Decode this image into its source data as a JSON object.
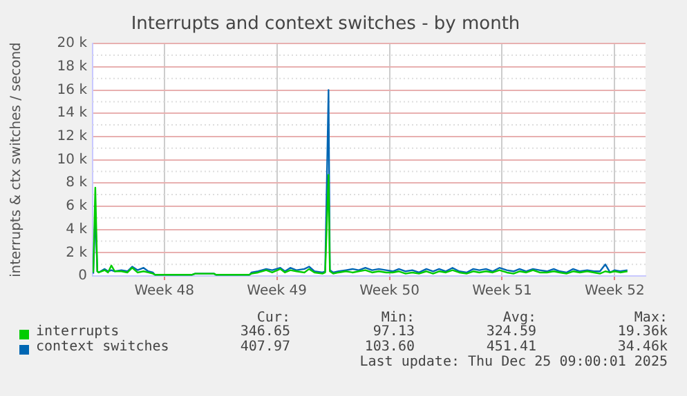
{
  "chart_data": {
    "type": "line",
    "title": "Interrupts and context switches - by month",
    "ylabel": "interrupts & ctx switches / second",
    "x": [
      "2025-11-21T01:00",
      "2025-11-21T04:00",
      "2025-11-21T07:00",
      "2025-11-21T09:00",
      "2025-11-21T18:00",
      "2025-11-21T23:00",
      "2025-11-22T04:00",
      "2025-11-22T09:00",
      "2025-11-22T19:00",
      "2025-11-23T04:00",
      "2025-11-23T11:00",
      "2025-11-23T19:00",
      "2025-11-24T04:00",
      "2025-11-24T11:00",
      "2025-11-24T18:00",
      "2025-11-24T21:00",
      "2025-11-25T21:00",
      "2025-11-27T04:00",
      "2025-11-27T09:00",
      "2025-11-28T13:00",
      "2025-11-28T16:00",
      "2025-11-30T18:00",
      "2025-11-30T21:00",
      "2025-12-01T07:00",
      "2025-12-01T19:00",
      "2025-12-02T04:00",
      "2025-12-02T16:00",
      "2025-12-02T23:00",
      "2025-12-03T07:00",
      "2025-12-03T16:00",
      "2025-12-04T04:00",
      "2025-12-04T11:00",
      "2025-12-04T19:00",
      "2025-12-05T07:00",
      "2025-12-05T11:00",
      "2025-12-05T16:00",
      "2025-12-05T18:00",
      "2025-12-05T23:00",
      "2025-12-06T07:00",
      "2025-12-06T18:00",
      "2025-12-07T04:00",
      "2025-12-07T13:00",
      "2025-12-07T23:00",
      "2025-12-08T09:00",
      "2025-12-08T19:00",
      "2025-12-09T06:00",
      "2025-12-09T16:00",
      "2025-12-10T01:00",
      "2025-12-10T11:00",
      "2025-12-10T21:00",
      "2025-12-11T07:00",
      "2025-12-11T18:00",
      "2025-12-12T04:00",
      "2025-12-12T13:00",
      "2025-12-12T23:00",
      "2025-12-13T09:00",
      "2025-12-13T19:00",
      "2025-12-14T06:00",
      "2025-12-14T16:00",
      "2025-12-15T01:00",
      "2025-12-15T11:00",
      "2025-12-15T21:00",
      "2025-12-16T07:00",
      "2025-12-16T18:00",
      "2025-12-17T04:00",
      "2025-12-17T13:00",
      "2025-12-17T23:00",
      "2025-12-18T09:00",
      "2025-12-18T19:00",
      "2025-12-19T06:00",
      "2025-12-19T16:00",
      "2025-12-20T01:00",
      "2025-12-20T11:00",
      "2025-12-20T21:00",
      "2025-12-21T07:00",
      "2025-12-21T18:00",
      "2025-12-22T04:00",
      "2025-12-22T13:00",
      "2025-12-22T21:00",
      "2025-12-23T04:00",
      "2025-12-23T11:00",
      "2025-12-23T19:00",
      "2025-12-24T06:00"
    ],
    "series": [
      {
        "name": "interrupts",
        "color": "#00cc00",
        "values": [
          300,
          7600,
          400,
          300,
          500,
          300,
          900,
          400,
          400,
          300,
          700,
          300,
          400,
          300,
          200,
          100,
          100,
          100,
          200,
          200,
          100,
          100,
          200,
          300,
          500,
          300,
          600,
          300,
          500,
          400,
          300,
          600,
          300,
          200,
          300,
          8700,
          400,
          200,
          300,
          400,
          300,
          400,
          500,
          300,
          400,
          300,
          300,
          400,
          200,
          300,
          200,
          400,
          200,
          400,
          300,
          500,
          300,
          200,
          400,
          300,
          400,
          300,
          500,
          300,
          200,
          400,
          300,
          500,
          300,
          300,
          400,
          300,
          200,
          400,
          300,
          400,
          300,
          200,
          400,
          300,
          400,
          300,
          400
        ]
      },
      {
        "name": "context switches",
        "color": "#0066b3",
        "values": [
          200,
          5500,
          400,
          300,
          600,
          400,
          500,
          400,
          500,
          400,
          800,
          500,
          700,
          400,
          300,
          100,
          100,
          100,
          200,
          200,
          100,
          100,
          300,
          400,
          600,
          500,
          700,
          400,
          700,
          500,
          600,
          800,
          400,
          300,
          400,
          16000,
          500,
          300,
          400,
          500,
          600,
          500,
          700,
          500,
          600,
          500,
          400,
          600,
          400,
          500,
          300,
          600,
          400,
          600,
          400,
          700,
          400,
          300,
          600,
          500,
          600,
          400,
          700,
          500,
          400,
          600,
          400,
          600,
          500,
          400,
          600,
          400,
          300,
          600,
          400,
          500,
          400,
          400,
          1000,
          300,
          500,
          400,
          500
        ]
      }
    ],
    "xlim": [
      "2025-11-21T00:00",
      "2025-12-25T09:00"
    ],
    "xticks": [
      {
        "value": "2025-11-25T11:00",
        "label": "Week 48"
      },
      {
        "value": "2025-12-02T11:00",
        "label": "Week 49"
      },
      {
        "value": "2025-12-09T11:00",
        "label": "Week 50"
      },
      {
        "value": "2025-12-16T11:00",
        "label": "Week 51"
      },
      {
        "value": "2025-12-23T11:00",
        "label": "Week 52"
      }
    ],
    "ylim": [
      0,
      20000
    ],
    "yticks": [
      {
        "value": 0,
        "label": "0"
      },
      {
        "value": 2000,
        "label": "2 k"
      },
      {
        "value": 4000,
        "label": "4 k"
      },
      {
        "value": 6000,
        "label": "6 k"
      },
      {
        "value": 8000,
        "label": "8 k"
      },
      {
        "value": 10000,
        "label": "10 k"
      },
      {
        "value": 12000,
        "label": "12 k"
      },
      {
        "value": 14000,
        "label": "14 k"
      },
      {
        "value": 16000,
        "label": "16 k"
      },
      {
        "value": 18000,
        "label": "18 k"
      },
      {
        "value": 20000,
        "label": "20 k"
      }
    ],
    "grid": true,
    "legend": "bottom",
    "marker": "none",
    "line_style": "solid",
    "annotations": [
      "Cur:",
      "Min:",
      "Avg:",
      "Max:",
      "346.65",
      "97.13",
      "324.59",
      "19.36k",
      "407.97",
      "103.60",
      "451.41",
      "34.46k",
      "Last update: Thu Dec 25 09:00:01 2025"
    ]
  }
}
